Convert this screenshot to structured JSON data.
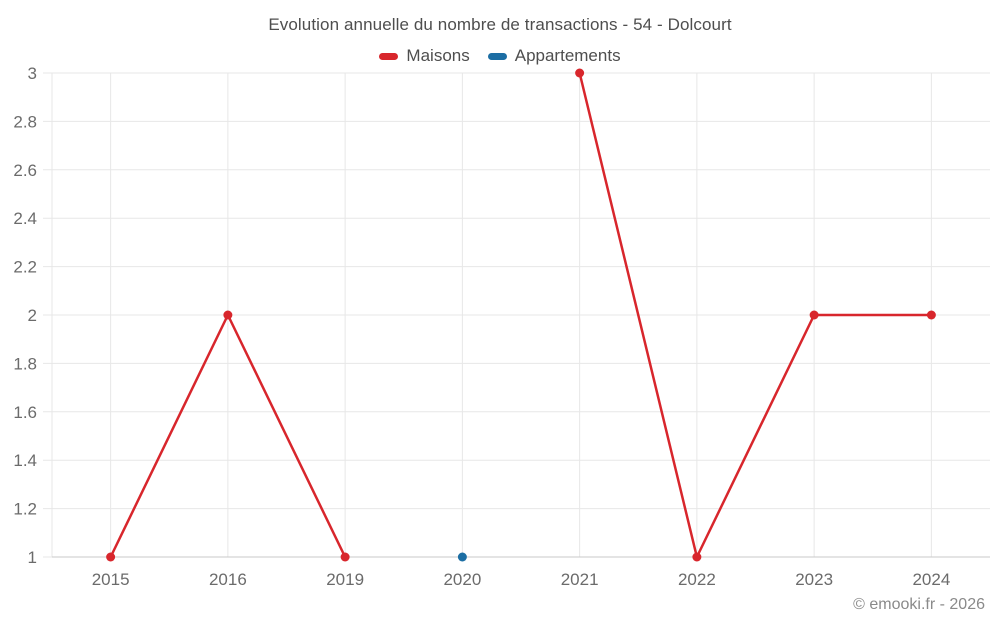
{
  "header": {
    "title": "Evolution annuelle du nombre de transactions - 54 - Dolcourt"
  },
  "legend": {
    "items": [
      {
        "label": "Maisons",
        "color": "#d8262c"
      },
      {
        "label": "Appartements",
        "color": "#1c6ea4"
      }
    ]
  },
  "footer": {
    "copyright": "© emooki.fr - 2026"
  },
  "colors": {
    "grid": "#e7e7e7",
    "axis": "#c9c9c9",
    "tick_label": "#6b6b6b",
    "title_text": "#4e4e4e",
    "copyright_text": "#8a8a8a",
    "maisons": "#d8262c",
    "appartements": "#1c6ea4"
  },
  "chart_data": {
    "type": "line",
    "title": "Evolution annuelle du nombre de transactions - 54 - Dolcourt",
    "xlabel": "",
    "ylabel": "",
    "categories": [
      "2015",
      "2016",
      "2019",
      "2020",
      "2021",
      "2022",
      "2023",
      "2024"
    ],
    "series": [
      {
        "name": "Maisons",
        "color": "#d8262c",
        "values": [
          1,
          2,
          1,
          null,
          3,
          1,
          2,
          2
        ]
      },
      {
        "name": "Appartements",
        "color": "#1c6ea4",
        "values": [
          null,
          null,
          null,
          1,
          null,
          null,
          null,
          null
        ]
      }
    ],
    "ylim": [
      1,
      3
    ],
    "yticks": [
      1,
      1.2,
      1.4,
      1.6,
      1.8,
      2,
      2.2,
      2.4,
      2.6,
      2.8,
      3
    ],
    "grid": true,
    "legend_position": "top"
  }
}
